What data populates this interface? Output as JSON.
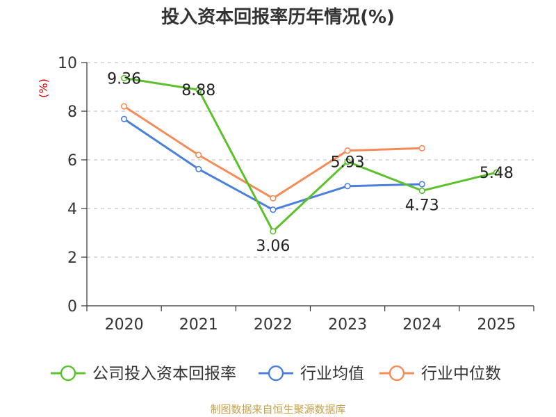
{
  "chart_data": {
    "type": "line",
    "title": "投入资本回报率历年情况(%)",
    "ylabel": "(%)",
    "xlabel": "",
    "categories": [
      "2020",
      "2021",
      "2022",
      "2023",
      "2024",
      "2025"
    ],
    "ylim": [
      0,
      10
    ],
    "yticks": [
      0,
      2,
      4,
      6,
      8,
      10
    ],
    "grid": true,
    "legend_position": "bottom",
    "series": [
      {
        "name": "公司投入资本回报率",
        "color": "#5bc12a",
        "values": [
          9.36,
          8.88,
          3.06,
          5.93,
          4.73,
          5.48
        ],
        "labels": [
          "9.36",
          "8.88",
          "3.06",
          "5.93",
          "4.73",
          "5.48"
        ]
      },
      {
        "name": "行业均值",
        "color": "#4b7fdc",
        "values": [
          7.68,
          5.62,
          3.95,
          4.92,
          5.0,
          null
        ]
      },
      {
        "name": "行业中位数",
        "color": "#f58b56",
        "values": [
          8.2,
          6.2,
          4.42,
          6.38,
          6.48,
          null
        ]
      }
    ]
  },
  "footer": "制图数据来自恒生聚源数据库"
}
